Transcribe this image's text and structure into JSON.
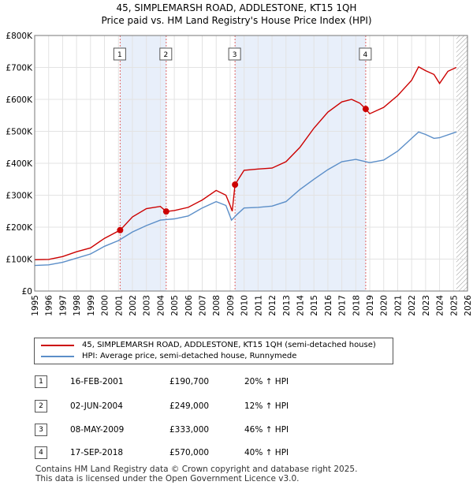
{
  "chart_data": {
    "type": "line",
    "title": "45, SIMPLEMARSH ROAD, ADDLESTONE, KT15 1QH",
    "subtitle": "Price paid vs. HM Land Registry's House Price Index (HPI)",
    "xlabel": "",
    "ylabel": "",
    "xlim": [
      1995,
      2026
    ],
    "ylim": [
      0,
      800000
    ],
    "x_ticks": [
      "1995",
      "1996",
      "1997",
      "1998",
      "1999",
      "2000",
      "2001",
      "2002",
      "2003",
      "2004",
      "2005",
      "2006",
      "2007",
      "2008",
      "2009",
      "2010",
      "2011",
      "2012",
      "2013",
      "2014",
      "2015",
      "2016",
      "2017",
      "2018",
      "2019",
      "2020",
      "2021",
      "2022",
      "2023",
      "2024",
      "2025",
      "2026"
    ],
    "y_ticks": [
      {
        "value": 0,
        "label": "£0"
      },
      {
        "value": 100000,
        "label": "£100K"
      },
      {
        "value": 200000,
        "label": "£200K"
      },
      {
        "value": 300000,
        "label": "£300K"
      },
      {
        "value": 400000,
        "label": "£400K"
      },
      {
        "value": 500000,
        "label": "£500K"
      },
      {
        "value": 600000,
        "label": "£600K"
      },
      {
        "value": 700000,
        "label": "£700K"
      },
      {
        "value": 800000,
        "label": "£800K"
      }
    ],
    "grid": true,
    "series": [
      {
        "name": "45, SIMPLEMARSH ROAD, ADDLESTONE, KT15 1QH (semi-detached house)",
        "color": "#cc0000",
        "points": [
          [
            1995.0,
            98000
          ],
          [
            1996.0,
            99000
          ],
          [
            1997.0,
            108000
          ],
          [
            1998.0,
            123000
          ],
          [
            1999.0,
            135000
          ],
          [
            2000.0,
            165000
          ],
          [
            2001.12,
            190700
          ],
          [
            2002.0,
            232000
          ],
          [
            2003.0,
            258000
          ],
          [
            2004.0,
            265000
          ],
          [
            2004.42,
            249000
          ],
          [
            2005.0,
            252000
          ],
          [
            2006.0,
            262000
          ],
          [
            2007.0,
            285000
          ],
          [
            2008.0,
            315000
          ],
          [
            2008.7,
            300000
          ],
          [
            2009.0,
            268000
          ],
          [
            2009.15,
            250000
          ],
          [
            2009.35,
            333000
          ],
          [
            2010.0,
            378000
          ],
          [
            2011.0,
            382000
          ],
          [
            2012.0,
            385000
          ],
          [
            2013.0,
            405000
          ],
          [
            2014.0,
            450000
          ],
          [
            2015.0,
            510000
          ],
          [
            2016.0,
            560000
          ],
          [
            2017.0,
            592000
          ],
          [
            2017.7,
            600000
          ],
          [
            2018.3,
            588000
          ],
          [
            2018.71,
            570000
          ],
          [
            2019.0,
            555000
          ],
          [
            2020.0,
            575000
          ],
          [
            2021.0,
            612000
          ],
          [
            2022.0,
            660000
          ],
          [
            2022.5,
            702000
          ],
          [
            2023.0,
            690000
          ],
          [
            2023.6,
            678000
          ],
          [
            2024.0,
            650000
          ],
          [
            2024.6,
            688000
          ],
          [
            2025.2,
            700000
          ]
        ]
      },
      {
        "name": "HPI: Average price, semi-detached house, Runnymede",
        "color": "#5b8ec8",
        "points": [
          [
            1995.0,
            80000
          ],
          [
            1996.0,
            82000
          ],
          [
            1997.0,
            90000
          ],
          [
            1998.0,
            103000
          ],
          [
            1999.0,
            116000
          ],
          [
            2000.0,
            140000
          ],
          [
            2001.0,
            158000
          ],
          [
            2002.0,
            185000
          ],
          [
            2003.0,
            205000
          ],
          [
            2004.0,
            222000
          ],
          [
            2005.0,
            226000
          ],
          [
            2006.0,
            235000
          ],
          [
            2007.0,
            260000
          ],
          [
            2008.0,
            280000
          ],
          [
            2008.7,
            268000
          ],
          [
            2009.1,
            222000
          ],
          [
            2009.5,
            240000
          ],
          [
            2010.0,
            260000
          ],
          [
            2011.0,
            262000
          ],
          [
            2012.0,
            266000
          ],
          [
            2013.0,
            280000
          ],
          [
            2014.0,
            318000
          ],
          [
            2015.0,
            350000
          ],
          [
            2016.0,
            380000
          ],
          [
            2017.0,
            405000
          ],
          [
            2018.0,
            412000
          ],
          [
            2019.0,
            402000
          ],
          [
            2020.0,
            410000
          ],
          [
            2021.0,
            438000
          ],
          [
            2022.0,
            478000
          ],
          [
            2022.5,
            498000
          ],
          [
            2023.0,
            490000
          ],
          [
            2023.6,
            478000
          ],
          [
            2024.0,
            480000
          ],
          [
            2025.2,
            498000
          ]
        ]
      }
    ],
    "transactions": [
      {
        "num": "1",
        "date": "16-FEB-2001",
        "price": "£190,700",
        "hpi": "20% ↑ HPI",
        "x": 2001.12,
        "value": 190700
      },
      {
        "num": "2",
        "date": "02-JUN-2004",
        "price": "£249,000",
        "hpi": "12% ↑ HPI",
        "x": 2004.42,
        "value": 249000
      },
      {
        "num": "3",
        "date": "08-MAY-2009",
        "price": "£333,000",
        "hpi": "46% ↑ HPI",
        "x": 2009.35,
        "value": 333000
      },
      {
        "num": "4",
        "date": "17-SEP-2018",
        "price": "£570,000",
        "hpi": "40% ↑ HPI",
        "x": 2018.71,
        "value": 570000
      }
    ],
    "shaded_periods": [
      [
        2001.12,
        2004.42
      ],
      [
        2009.35,
        2018.71
      ]
    ],
    "future_hatch_from": 2025.2
  },
  "legend": {
    "property_label": "45, SIMPLEMARSH ROAD, ADDLESTONE, KT15 1QH (semi-detached house)",
    "hpi_label": "HPI: Average price, semi-detached house, Runnymede",
    "property_color": "#cc0000",
    "hpi_color": "#5b8ec8"
  },
  "footer": {
    "line1": "Contains HM Land Registry data © Crown copyright and database right 2025.",
    "line2": "This data is licensed under the Open Government Licence v3.0."
  }
}
